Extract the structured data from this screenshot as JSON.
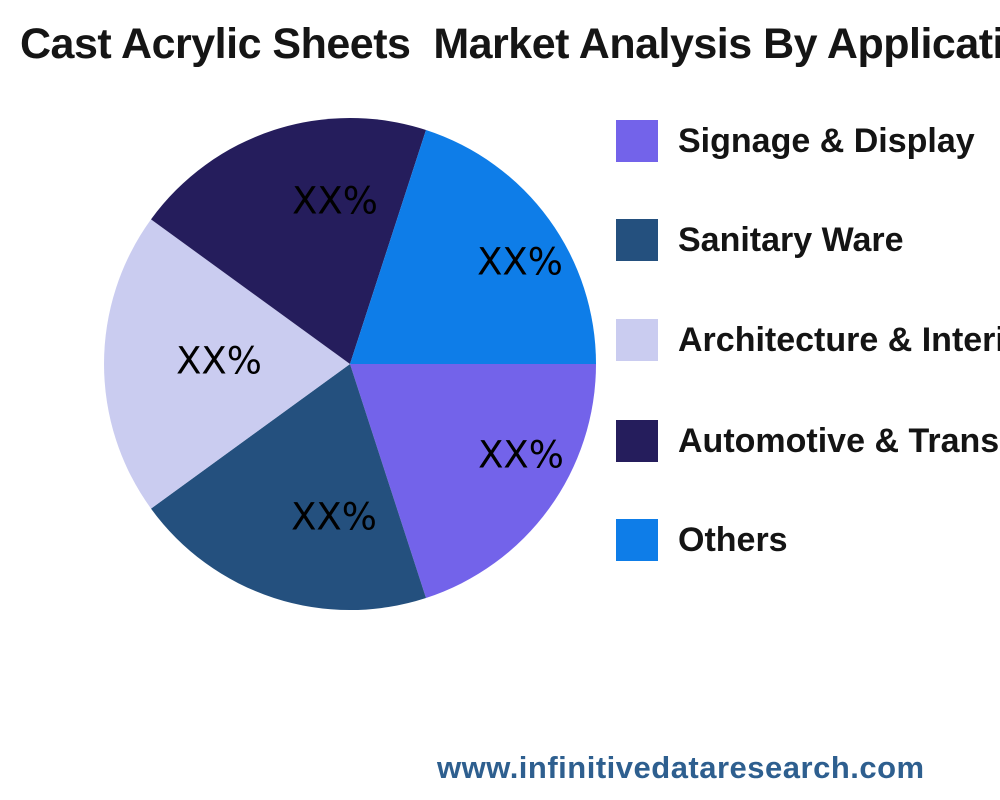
{
  "title": "Cast Acrylic Sheets  Market Analysis By Application",
  "watermark": "www.infinitivedataresearch.com",
  "chart_data": {
    "type": "pie",
    "title": "Cast Acrylic Sheets  Market Analysis By Application",
    "values_masked": true,
    "start_angle_deg": 0,
    "direction": "clockwise",
    "legend_position": "right",
    "labels_inside": true,
    "background_color": "#ffffff",
    "percent_label_color": "#000000",
    "watermark_color": "#2E5F8F",
    "series": [
      {
        "name": "Signage & Display",
        "value": 20,
        "display_value": "XX%",
        "color": "#7363EA"
      },
      {
        "name": "Sanitary Ware",
        "value": 20,
        "display_value": "XX%",
        "color": "#24507E"
      },
      {
        "name": "Architecture & Interior",
        "value": 20,
        "display_value": "XX%",
        "color": "#CACCF0"
      },
      {
        "name": "Automotive & Transportation",
        "value": 20,
        "display_value": "XX%",
        "color": "#251D5C"
      },
      {
        "name": "Others",
        "value": 20,
        "display_value": "XX%",
        "color": "#0E7DE8"
      }
    ]
  }
}
